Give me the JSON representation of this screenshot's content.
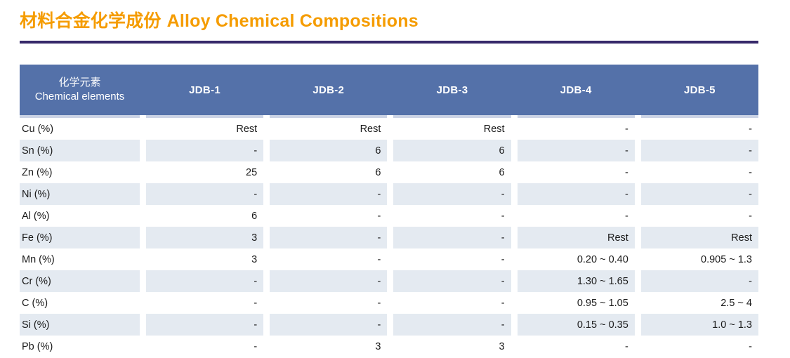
{
  "page": {
    "title_zh": "材料合金化学成份",
    "title_en": "Alloy Chemical Compositions"
  },
  "colors": {
    "accent_orange": "#F59C00",
    "title_rule": "#37296A",
    "table_header_bg": "#5471A9",
    "row_stripe": "#E4EAF1",
    "header_bottom_strip": "#CBD3E5"
  },
  "table": {
    "element_header": {
      "zh": "化学元素",
      "en": "Chemical elements"
    },
    "columns": [
      "JDB-1",
      "JDB-2",
      "JDB-3",
      "JDB-4",
      "JDB-5"
    ],
    "rows": [
      {
        "label": "Cu (%)",
        "values": [
          "Rest",
          "Rest",
          "Rest",
          "-",
          "-"
        ]
      },
      {
        "label": "Sn (%)",
        "values": [
          "-",
          "6",
          "6",
          "-",
          "-"
        ]
      },
      {
        "label": "Zn (%)",
        "values": [
          "25",
          "6",
          "6",
          "-",
          "-"
        ]
      },
      {
        "label": "Ni (%)",
        "values": [
          "-",
          "-",
          "-",
          "-",
          "-"
        ]
      },
      {
        "label": "Al (%)",
        "values": [
          "6",
          "-",
          "-",
          "-",
          "-"
        ]
      },
      {
        "label": "Fe (%)",
        "values": [
          "3",
          "-",
          "-",
          "Rest",
          "Rest"
        ]
      },
      {
        "label": "Mn (%)",
        "values": [
          "3",
          "-",
          "-",
          "0.20 ~ 0.40",
          "0.905 ~ 1.3"
        ]
      },
      {
        "label": "Cr (%)",
        "values": [
          "-",
          "-",
          "-",
          "1.30 ~ 1.65",
          "-"
        ]
      },
      {
        "label": "C (%)",
        "values": [
          "-",
          "-",
          "-",
          "0.95 ~ 1.05",
          "2.5 ~ 4"
        ]
      },
      {
        "label": "Si (%)",
        "values": [
          "-",
          "-",
          "-",
          "0.15 ~ 0.35",
          "1.0 ~ 1.3"
        ]
      },
      {
        "label": "Pb (%)",
        "values": [
          "-",
          "3",
          "3",
          "-",
          "-"
        ]
      }
    ]
  }
}
